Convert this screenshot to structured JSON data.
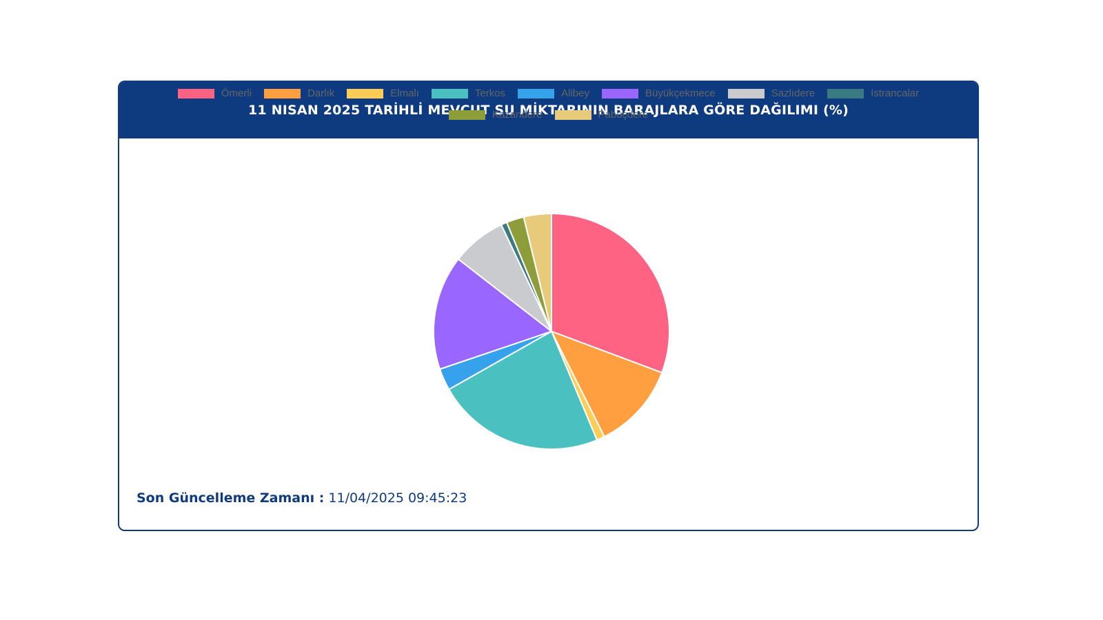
{
  "card": {
    "title": "11 NISAN 2025 TARİHLİ MEVCUT SU MİKTARININ BARAJLARA GÖRE DAĞILIMI (%)"
  },
  "footer": {
    "label": "Son Güncelleme Zamanı :",
    "value": "11/04/2025 09:45:23"
  },
  "colors": {
    "header_bg": "#0e3a80",
    "slice_border": "#ffffff"
  },
  "chart_data": {
    "type": "pie",
    "title": "11 NISAN 2025 TARİHLİ MEVCUT SU MİKTARININ BARAJLARA GÖRE DAĞILIMI (%)",
    "legend_position": "top",
    "start_angle": "top, clockwise",
    "categories": [
      "Ömerli",
      "Darlık",
      "Elmalı",
      "Terkos",
      "Alibey",
      "Büyükçekmece",
      "Sazlıdere",
      "Istrancalar",
      "Kazandere",
      "Pabuçdere"
    ],
    "values": [
      30.7,
      11.9,
      1.1,
      23.1,
      3.0,
      15.7,
      7.5,
      0.8,
      2.4,
      3.8
    ],
    "colors": [
      "#ff6384",
      "#ff9f40",
      "#ffcd56",
      "#4bc0c0",
      "#36a2eb",
      "#9966ff",
      "#c9cbcf",
      "#3a7a80",
      "#8c9d3a",
      "#e8cb7a"
    ]
  }
}
